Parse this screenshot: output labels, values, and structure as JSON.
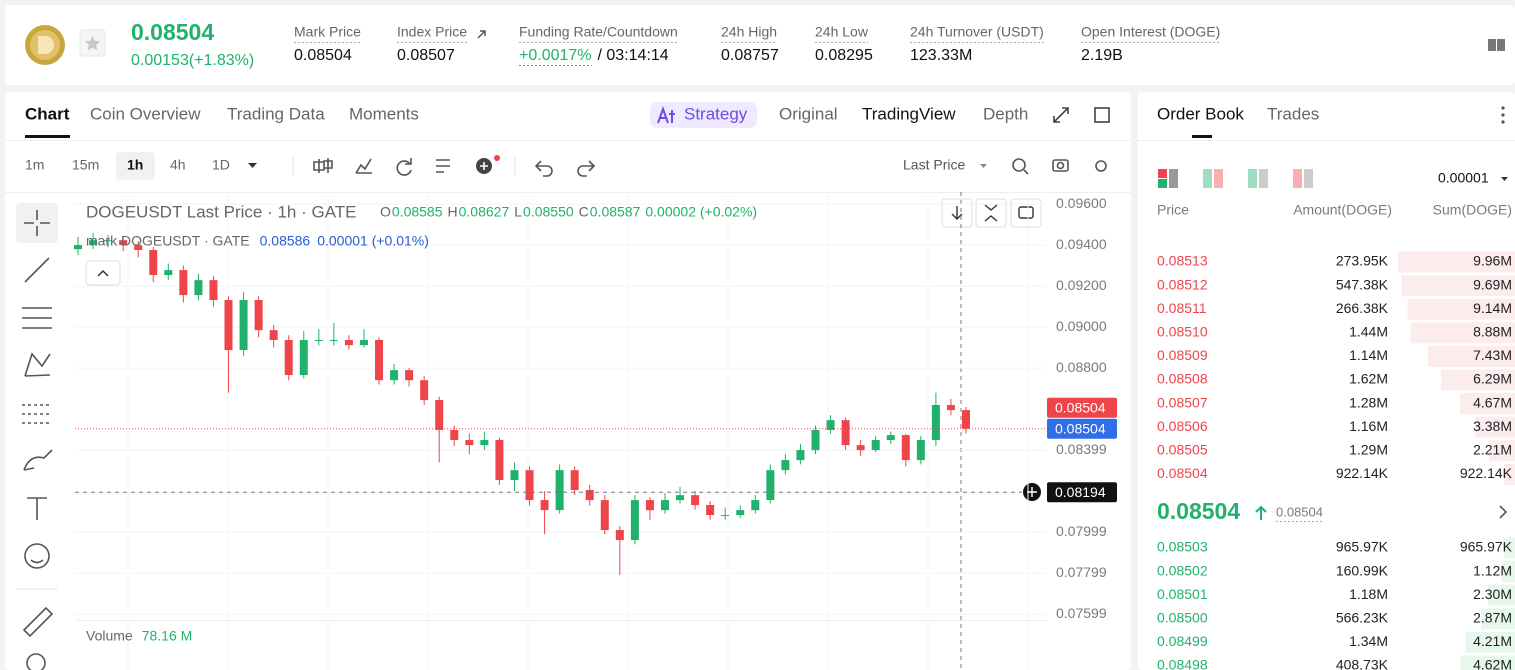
{
  "header": {
    "price": "0.08504",
    "change": "0.00153(+1.83%)",
    "stats": [
      {
        "label": "Mark Price",
        "value": "0.08504"
      },
      {
        "label": "Index Price",
        "value": "0.08507"
      },
      {
        "label": "Funding Rate/Countdown",
        "value": "+0.0017%",
        "countdown": "/ 03:14:14"
      },
      {
        "label": "24h High",
        "value": "0.08757"
      },
      {
        "label": "24h Low",
        "value": "0.08295"
      },
      {
        "label": "24h Turnover (USDT)",
        "value": "123.33M"
      },
      {
        "label": "Open Interest (DOGE)",
        "value": "2.19B"
      }
    ]
  },
  "tabs": [
    "Chart",
    "Coin Overview",
    "Trading Data",
    "Moments"
  ],
  "view_tabs": [
    "Strategy",
    "Original",
    "TradingView",
    "Depth"
  ],
  "intervals": [
    "1m",
    "15m",
    "1h",
    "4h",
    "1D"
  ],
  "price_type": "Last Price",
  "chart": {
    "title": "DOGEUSDT Last Price · 1h · GATE",
    "ohlc": [
      {
        "key": "O",
        "value": "0.08585"
      },
      {
        "key": "H",
        "value": "0.08627"
      },
      {
        "key": "L",
        "value": "0.08550"
      },
      {
        "key": "C",
        "value": "0.08587"
      }
    ],
    "change": "0.00002 (+0.02%)",
    "mark_label": "mark DOGEUSDT · GATE",
    "mark_price": "0.08586",
    "mark_change": "0.00001 (+0.01%)",
    "volume_label": "Volume",
    "volume_value": "78.16 M",
    "ylim": [
      0.07571,
      0.09659
    ],
    "yticks": [
      {
        "value": 0.096,
        "label": "0.09600"
      },
      {
        "value": 0.094,
        "label": "0.09400"
      },
      {
        "value": 0.092,
        "label": "0.09200"
      },
      {
        "value": 0.09,
        "label": "0.09000"
      },
      {
        "value": 0.088,
        "label": "0.08800"
      },
      {
        "value": 0.08399,
        "label": "0.08399"
      },
      {
        "value": 0.07999,
        "label": "0.07999"
      },
      {
        "value": 0.07799,
        "label": "0.07799"
      },
      {
        "value": 0.07599,
        "label": "0.07599"
      }
    ],
    "up_color": "#20b26c",
    "down_color": "#ef454a",
    "candles": {
      "open": [
        0.0938,
        0.094,
        0.09424,
        0.09424,
        0.094,
        0.09376,
        0.09254,
        0.09278,
        0.09156,
        0.09229,
        0.09132,
        0.08888,
        0.09132,
        0.08985,
        0.08937,
        0.08766,
        0.08937,
        0.08937,
        0.08937,
        0.08912,
        0.08937,
        0.08741,
        0.0879,
        0.08741,
        0.08644,
        0.08498,
        0.08449,
        0.08424,
        0.08449,
        0.08254,
        0.08302,
        0.08156,
        0.08107,
        0.08302,
        0.08205,
        0.08156,
        0.0801,
        0.07961,
        0.08156,
        0.08107,
        0.08156,
        0.0818,
        0.08132,
        0.08083,
        0.08083,
        0.08107,
        0.08156,
        0.08302,
        0.08351,
        0.084,
        0.08498,
        0.08546,
        0.08424,
        0.084,
        0.08449,
        0.08473,
        0.08351,
        0.08449,
        0.0862,
        0.08595
      ],
      "high": [
        0.0944,
        0.0946,
        0.0945,
        0.0944,
        0.0942,
        0.0939,
        0.0931,
        0.093,
        0.0926,
        0.0925,
        0.0915,
        0.0917,
        0.0915,
        0.0901,
        0.0896,
        0.0898,
        0.0899,
        0.0902,
        0.0896,
        0.0899,
        0.0895,
        0.0882,
        0.088,
        0.0876,
        0.0866,
        0.0852,
        0.0848,
        0.0849,
        0.0846,
        0.0834,
        0.0832,
        0.082,
        0.0833,
        0.0832,
        0.0823,
        0.0818,
        0.0803,
        0.0818,
        0.0817,
        0.0819,
        0.0822,
        0.082,
        0.0815,
        0.0812,
        0.0813,
        0.0818,
        0.0833,
        0.0838,
        0.0843,
        0.0852,
        0.0857,
        0.0856,
        0.0845,
        0.0847,
        0.0849,
        0.0848,
        0.0847,
        0.0868,
        0.0865,
        0.0861
      ],
      "low": [
        0.0935,
        0.0938,
        0.0939,
        0.0937,
        0.0934,
        0.0922,
        0.0923,
        0.0912,
        0.0913,
        0.091,
        0.0868,
        0.0886,
        0.0895,
        0.089,
        0.0874,
        0.0875,
        0.0891,
        0.0891,
        0.0889,
        0.089,
        0.0872,
        0.0872,
        0.0871,
        0.0862,
        0.0834,
        0.0842,
        0.0838,
        0.084,
        0.0823,
        0.082,
        0.0813,
        0.0799,
        0.0809,
        0.0818,
        0.0813,
        0.0799,
        0.0779,
        0.0794,
        0.0806,
        0.0809,
        0.0814,
        0.0811,
        0.0806,
        0.0806,
        0.0807,
        0.0809,
        0.0814,
        0.0828,
        0.0833,
        0.0838,
        0.0848,
        0.084,
        0.0837,
        0.0839,
        0.0843,
        0.0832,
        0.0833,
        0.0842,
        0.0857,
        0.0848
      ],
      "close": [
        0.094,
        0.09424,
        0.09424,
        0.094,
        0.09376,
        0.09254,
        0.09278,
        0.09156,
        0.09229,
        0.09132,
        0.08888,
        0.09132,
        0.08985,
        0.08937,
        0.08766,
        0.08937,
        0.08937,
        0.08937,
        0.08912,
        0.08937,
        0.08741,
        0.0879,
        0.08741,
        0.08644,
        0.08498,
        0.08449,
        0.08424,
        0.08449,
        0.08254,
        0.08302,
        0.08156,
        0.08107,
        0.08302,
        0.08205,
        0.08156,
        0.0801,
        0.07961,
        0.08156,
        0.08107,
        0.08156,
        0.0818,
        0.08132,
        0.08083,
        0.08083,
        0.08107,
        0.08156,
        0.08302,
        0.08351,
        0.084,
        0.08498,
        0.08546,
        0.08424,
        0.084,
        0.08449,
        0.08473,
        0.08351,
        0.08449,
        0.0862,
        0.08595,
        0.08504
      ]
    },
    "price_tags": [
      {
        "value": 0.08504,
        "color": "#ef454a"
      },
      {
        "value": 0.08504,
        "color": "#2f6ee6"
      },
      {
        "value": 0.08194,
        "color": "#111111"
      }
    ]
  },
  "order_book": {
    "tabs": [
      "Order Book",
      "Trades"
    ],
    "precision": "0.00001",
    "columns": [
      "Price",
      "Amount(DOGE)",
      "Sum(DOGE)"
    ],
    "asks": [
      {
        "price": "0.08513",
        "amount": "273.95K",
        "sum": 9960000,
        "sum_label": "9.96M"
      },
      {
        "price": "0.08512",
        "amount": "547.38K",
        "sum": 9690000,
        "sum_label": "9.69M"
      },
      {
        "price": "0.08511",
        "amount": "266.38K",
        "sum": 9140000,
        "sum_label": "9.14M"
      },
      {
        "price": "0.08510",
        "amount": "1.44M",
        "sum": 8880000,
        "sum_label": "8.88M"
      },
      {
        "price": "0.08509",
        "amount": "1.14M",
        "sum": 7430000,
        "sum_label": "7.43M"
      },
      {
        "price": "0.08508",
        "amount": "1.62M",
        "sum": 6290000,
        "sum_label": "6.29M"
      },
      {
        "price": "0.08507",
        "amount": "1.28M",
        "sum": 4670000,
        "sum_label": "4.67M"
      },
      {
        "price": "0.08506",
        "amount": "1.16M",
        "sum": 3380000,
        "sum_label": "3.38M"
      },
      {
        "price": "0.08505",
        "amount": "1.29M",
        "sum": 2210000,
        "sum_label": "2.21M"
      },
      {
        "price": "0.08504",
        "amount": "922.14K",
        "sum": 922140,
        "sum_label": "922.14K"
      }
    ],
    "last_price": "0.08504",
    "mark_price": "0.08504",
    "bids": [
      {
        "price": "0.08503",
        "amount": "965.97K",
        "sum": 965970,
        "sum_label": "965.97K"
      },
      {
        "price": "0.08502",
        "amount": "160.99K",
        "sum": 1120000,
        "sum_label": "1.12M"
      },
      {
        "price": "0.08501",
        "amount": "1.18M",
        "sum": 2300000,
        "sum_label": "2.30M"
      },
      {
        "price": "0.08500",
        "amount": "566.23K",
        "sum": 2870000,
        "sum_label": "2.87M"
      },
      {
        "price": "0.08499",
        "amount": "1.34M",
        "sum": 4210000,
        "sum_label": "4.21M"
      },
      {
        "price": "0.08498",
        "amount": "408.73K",
        "sum": 4620000,
        "sum_label": "4.62M"
      }
    ]
  }
}
